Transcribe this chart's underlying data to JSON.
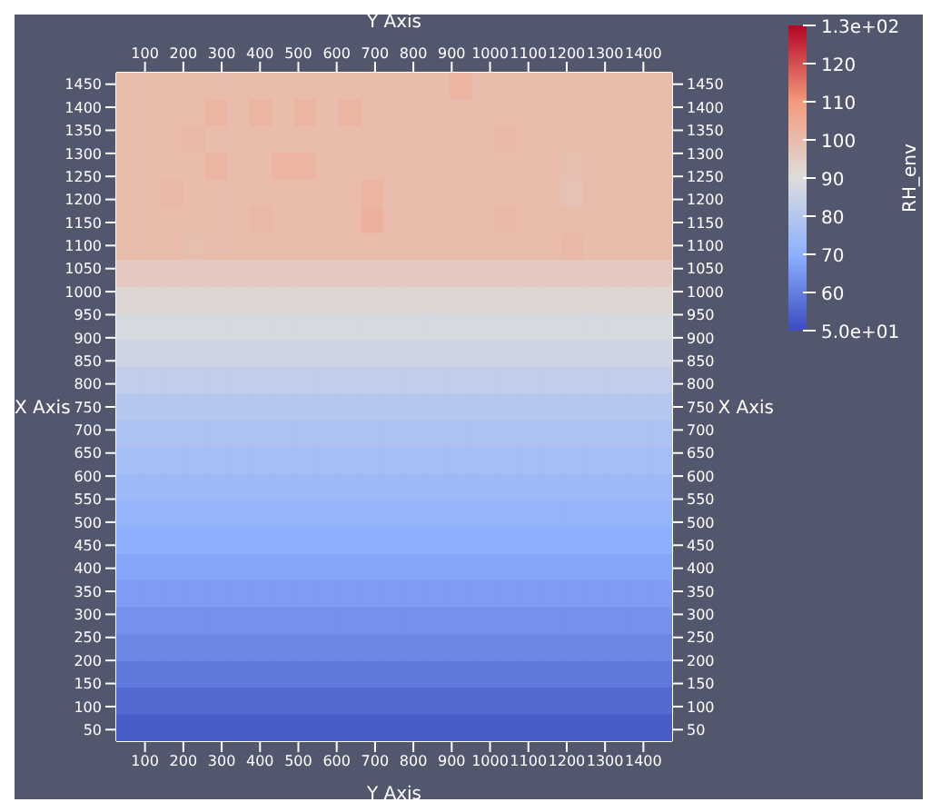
{
  "chart_data": {
    "type": "heatmap",
    "xlabel": "Y Axis",
    "x2label": "Y Axis",
    "ylabel": "X Axis",
    "y2label": "X Axis",
    "clabel": "RH_env",
    "x": [
      54,
      112,
      170,
      228,
      286,
      344,
      402,
      460,
      518,
      576,
      634,
      692,
      750,
      808,
      866,
      924,
      982,
      1040,
      1098,
      1156,
      1214,
      1272,
      1330,
      1388,
      1446
    ],
    "y": [
      1446,
      1388,
      1330,
      1272,
      1214,
      1156,
      1098,
      1040,
      982,
      924,
      866,
      808,
      750,
      692,
      634,
      576,
      518,
      460,
      402,
      344,
      286,
      228,
      170,
      112,
      54
    ],
    "xlim": [
      25,
      1475
    ],
    "xticks": [
      100,
      200,
      300,
      400,
      500,
      600,
      700,
      800,
      900,
      1000,
      1100,
      1200,
      1300,
      1400
    ],
    "x2lim": [
      25,
      1475
    ],
    "x2ticks": [
      100,
      200,
      300,
      400,
      500,
      600,
      700,
      800,
      900,
      1000,
      1100,
      1200,
      1300,
      1400
    ],
    "ylim": [
      25,
      1475
    ],
    "yticks": [
      50,
      100,
      150,
      200,
      250,
      300,
      350,
      400,
      450,
      500,
      550,
      600,
      650,
      700,
      750,
      800,
      850,
      900,
      950,
      1000,
      1050,
      1100,
      1150,
      1200,
      1250,
      1300,
      1350,
      1400,
      1450
    ],
    "y2lim": [
      25,
      1475
    ],
    "y2ticks": [
      50,
      100,
      150,
      200,
      250,
      300,
      350,
      400,
      450,
      500,
      550,
      600,
      650,
      700,
      750,
      800,
      850,
      900,
      950,
      1000,
      1050,
      1100,
      1150,
      1200,
      1250,
      1300,
      1350,
      1400,
      1450
    ],
    "clim": [
      50,
      130
    ],
    "cticks": [
      {
        "value": 130,
        "label": "1.3e+02"
      },
      120,
      110,
      100,
      90,
      80,
      70,
      60,
      {
        "value": 50,
        "label": "5.0e+01"
      }
    ],
    "cells": [
      [
        100,
        100,
        100,
        100,
        100,
        100,
        100,
        100,
        100,
        100,
        100,
        100,
        100,
        100,
        100,
        102,
        100,
        100,
        100,
        100,
        100,
        100,
        100,
        100,
        100
      ],
      [
        100,
        100,
        100,
        100,
        102,
        100,
        102,
        100,
        102,
        100,
        102,
        100,
        100,
        100,
        100,
        100,
        100,
        100,
        100,
        100,
        100,
        100,
        100,
        100,
        100
      ],
      [
        100,
        100,
        100,
        101,
        100,
        100,
        100,
        100,
        100,
        100,
        100,
        100,
        100,
        100,
        100,
        100,
        100,
        101,
        100,
        100,
        100,
        100,
        100,
        100,
        100
      ],
      [
        100,
        100,
        100,
        100,
        102,
        100,
        100,
        102,
        102,
        100,
        100,
        100,
        100,
        100,
        100,
        100,
        100,
        100,
        100,
        100,
        99,
        100,
        100,
        100,
        100
      ],
      [
        100,
        100,
        101,
        100,
        100,
        100,
        100,
        100,
        100,
        100,
        100,
        102,
        100,
        100,
        100,
        100,
        100,
        100,
        100,
        100,
        98,
        100,
        100,
        100,
        100
      ],
      [
        100,
        100,
        100,
        100,
        100,
        100,
        101,
        100,
        100,
        100,
        100,
        103,
        100,
        100,
        100,
        100,
        100,
        101,
        100,
        100,
        100,
        100,
        100,
        100,
        100
      ],
      [
        100,
        100,
        100,
        99,
        100,
        100,
        100,
        100,
        100,
        100,
        100,
        100,
        100,
        100,
        100,
        100,
        100,
        100,
        100,
        100,
        101,
        100,
        100,
        100,
        100
      ],
      [
        96,
        96,
        96,
        96,
        96,
        96,
        96,
        96,
        96,
        96,
        96,
        96,
        96,
        96,
        96,
        96,
        96,
        96,
        96,
        96,
        96,
        96,
        96,
        96,
        96
      ],
      [
        92,
        92,
        92,
        92,
        92,
        92,
        92,
        92,
        92,
        92,
        92,
        92,
        92,
        92,
        92,
        92,
        92,
        92,
        92,
        92,
        92,
        92,
        92,
        92,
        92
      ],
      [
        88,
        88,
        88,
        88,
        88,
        88,
        88,
        88,
        88,
        88,
        88,
        88,
        88,
        88,
        88,
        88,
        88,
        88,
        88,
        88,
        88,
        88,
        88,
        88,
        88
      ],
      [
        86,
        86,
        86,
        86,
        86,
        86,
        86,
        86,
        86,
        86,
        86,
        86,
        86,
        86,
        86,
        86,
        86,
        86,
        86,
        86,
        86,
        86,
        86,
        86,
        86
      ],
      [
        83,
        83,
        83,
        83,
        83,
        83,
        83,
        83,
        83,
        83,
        83,
        83,
        83,
        83,
        83,
        83,
        83,
        83,
        83,
        83,
        83,
        83,
        83,
        83,
        83
      ],
      [
        80,
        80,
        80,
        80,
        80,
        80,
        80,
        80,
        80,
        80,
        80,
        80,
        80,
        80,
        80,
        80,
        80,
        80,
        80,
        80,
        80,
        80,
        80,
        80,
        80
      ],
      [
        78,
        78,
        78,
        78,
        78,
        78,
        78,
        78,
        78,
        78,
        78,
        78,
        78,
        78,
        78,
        78,
        78,
        78,
        78,
        78,
        78,
        78,
        78,
        78,
        78
      ],
      [
        76,
        76,
        76,
        76,
        76,
        76,
        76,
        76,
        76,
        76,
        76,
        76,
        76,
        76,
        76,
        76,
        76,
        76,
        76,
        76,
        76,
        76,
        76,
        76,
        76
      ],
      [
        74,
        74,
        74,
        74,
        74,
        74,
        74,
        74,
        74,
        74,
        74,
        74,
        74,
        74,
        74,
        74,
        74,
        74,
        74,
        74,
        74,
        74,
        74,
        74,
        74
      ],
      [
        72,
        72,
        72,
        72,
        72,
        72,
        72,
        72,
        72,
        72,
        72,
        72,
        72,
        72,
        72,
        72,
        72,
        72,
        72,
        72,
        72,
        72,
        72,
        72,
        72
      ],
      [
        70,
        70,
        70,
        70,
        70,
        70,
        70,
        70,
        70,
        70,
        70,
        70,
        70,
        70,
        70,
        70,
        70,
        70,
        70,
        70,
        70,
        70,
        70,
        70,
        70
      ],
      [
        68,
        68,
        68,
        68,
        68,
        68,
        68,
        68,
        68,
        68,
        68,
        68,
        68,
        68,
        68,
        68,
        68,
        68,
        68,
        68,
        68,
        68,
        68,
        68,
        68
      ],
      [
        66,
        66,
        66,
        66,
        66,
        66,
        66,
        66,
        66,
        66,
        66,
        66,
        66,
        66,
        66,
        66,
        66,
        66,
        66,
        66,
        66,
        66,
        66,
        66,
        66
      ],
      [
        64,
        64,
        64,
        64,
        64,
        64,
        64,
        64,
        64,
        64,
        64,
        64,
        64,
        64,
        64,
        64,
        64,
        64,
        64,
        64,
        64,
        64,
        64,
        64,
        64
      ],
      [
        62,
        62,
        62,
        62,
        62,
        62,
        62,
        62,
        62,
        62,
        62,
        62,
        62,
        62,
        62,
        62,
        62,
        62,
        62,
        62,
        62,
        62,
        62,
        62,
        62
      ],
      [
        59,
        59,
        59,
        59,
        59,
        59,
        59,
        59,
        59,
        59,
        59,
        59,
        59,
        59,
        59,
        59,
        59,
        59,
        59,
        59,
        59,
        59,
        59,
        59,
        59
      ],
      [
        56,
        56,
        56,
        56,
        56,
        56,
        56,
        56,
        56,
        56,
        56,
        56,
        56,
        56,
        56,
        56,
        56,
        56,
        56,
        56,
        56,
        56,
        56,
        56,
        56
      ],
      [
        53,
        53,
        53,
        53,
        53,
        53,
        53,
        53,
        53,
        53,
        53,
        53,
        53,
        53,
        53,
        53,
        53,
        53,
        53,
        53,
        53,
        53,
        53,
        53,
        53
      ]
    ]
  }
}
